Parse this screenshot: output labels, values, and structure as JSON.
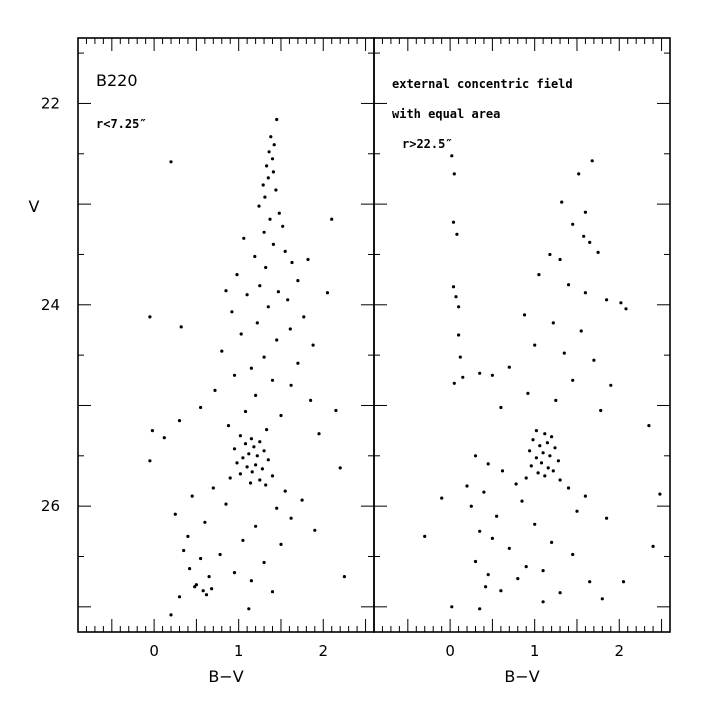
{
  "chart_data": [
    {
      "type": "scatter",
      "xlabel": "B−V",
      "ylabel": "V",
      "xlim": [
        -0.9,
        2.6
      ],
      "ylim": [
        27.25,
        21.35
      ],
      "xticks": [
        0,
        1,
        2
      ],
      "yticks": [
        22,
        24,
        26
      ],
      "y_inverted": true,
      "grid": false,
      "annotations": [
        "B220",
        "r<7.25″"
      ],
      "series": [
        {
          "points": [
            [
              1.45,
              22.16
            ],
            [
              1.38,
              22.33
            ],
            [
              1.42,
              22.41
            ],
            [
              1.36,
              22.48
            ],
            [
              1.4,
              22.55
            ],
            [
              1.33,
              22.62
            ],
            [
              1.41,
              22.68
            ],
            [
              1.35,
              22.74
            ],
            [
              1.29,
              22.81
            ],
            [
              1.44,
              22.86
            ],
            [
              1.31,
              22.93
            ],
            [
              0.2,
              22.58
            ],
            [
              1.24,
              23.02
            ],
            [
              1.48,
              23.09
            ],
            [
              1.37,
              23.15
            ],
            [
              1.52,
              23.22
            ],
            [
              1.3,
              23.28
            ],
            [
              1.06,
              23.34
            ],
            [
              1.41,
              23.4
            ],
            [
              1.55,
              23.47
            ],
            [
              1.19,
              23.52
            ],
            [
              1.63,
              23.58
            ],
            [
              1.32,
              23.63
            ],
            [
              0.98,
              23.7
            ],
            [
              1.7,
              23.76
            ],
            [
              1.25,
              23.81
            ],
            [
              1.47,
              23.87
            ],
            [
              2.1,
              23.15
            ],
            [
              1.82,
              23.55
            ],
            [
              0.85,
              23.86
            ],
            [
              1.1,
              23.9
            ],
            [
              1.58,
              23.95
            ],
            [
              1.35,
              24.02
            ],
            [
              0.92,
              24.07
            ],
            [
              1.77,
              24.12
            ],
            [
              1.22,
              24.18
            ],
            [
              1.61,
              24.24
            ],
            [
              1.03,
              24.29
            ],
            [
              1.45,
              24.35
            ],
            [
              1.88,
              24.4
            ],
            [
              0.8,
              24.46
            ],
            [
              1.3,
              24.52
            ],
            [
              1.7,
              24.58
            ],
            [
              1.15,
              24.63
            ],
            [
              -0.05,
              24.12
            ],
            [
              0.32,
              24.22
            ],
            [
              2.05,
              23.88
            ],
            [
              0.95,
              24.7
            ],
            [
              1.4,
              24.75
            ],
            [
              1.62,
              24.8
            ],
            [
              0.72,
              24.85
            ],
            [
              1.2,
              24.9
            ],
            [
              1.85,
              24.95
            ],
            [
              0.55,
              25.02
            ],
            [
              1.08,
              25.06
            ],
            [
              1.5,
              25.1
            ],
            [
              0.3,
              25.15
            ],
            [
              0.88,
              25.2
            ],
            [
              1.33,
              25.24
            ],
            [
              1.95,
              25.28
            ],
            [
              0.12,
              25.32
            ],
            [
              2.15,
              25.05
            ],
            [
              -0.02,
              25.25
            ],
            [
              1.02,
              25.3
            ],
            [
              1.15,
              25.33
            ],
            [
              1.25,
              25.36
            ],
            [
              1.08,
              25.38
            ],
            [
              1.18,
              25.41
            ],
            [
              0.95,
              25.43
            ],
            [
              1.3,
              25.45
            ],
            [
              1.12,
              25.48
            ],
            [
              1.22,
              25.5
            ],
            [
              1.05,
              25.52
            ],
            [
              1.35,
              25.54
            ],
            [
              0.98,
              25.57
            ],
            [
              1.2,
              25.59
            ],
            [
              1.1,
              25.61
            ],
            [
              1.28,
              25.63
            ],
            [
              1.16,
              25.66
            ],
            [
              1.02,
              25.68
            ],
            [
              1.4,
              25.7
            ],
            [
              0.9,
              25.72
            ],
            [
              1.25,
              25.74
            ],
            [
              1.14,
              25.77
            ],
            [
              1.32,
              25.79
            ],
            [
              0.7,
              25.82
            ],
            [
              1.55,
              25.85
            ],
            [
              0.45,
              25.9
            ],
            [
              1.75,
              25.94
            ],
            [
              0.85,
              25.98
            ],
            [
              1.45,
              26.02
            ],
            [
              0.25,
              26.08
            ],
            [
              1.62,
              26.12
            ],
            [
              0.6,
              26.16
            ],
            [
              1.2,
              26.2
            ],
            [
              1.9,
              26.24
            ],
            [
              0.4,
              26.3
            ],
            [
              1.05,
              26.34
            ],
            [
              1.5,
              26.38
            ],
            [
              0.35,
              26.44
            ],
            [
              0.78,
              26.48
            ],
            [
              2.2,
              25.62
            ],
            [
              2.25,
              26.7
            ],
            [
              -0.05,
              25.55
            ],
            [
              0.55,
              26.52
            ],
            [
              1.3,
              26.56
            ],
            [
              0.42,
              26.62
            ],
            [
              0.95,
              26.66
            ],
            [
              0.65,
              26.7
            ],
            [
              1.15,
              26.74
            ],
            [
              0.5,
              26.78
            ],
            [
              0.58,
              26.84
            ],
            [
              0.62,
              26.88
            ],
            [
              0.48,
              26.8
            ],
            [
              0.68,
              26.82
            ],
            [
              0.2,
              27.08
            ],
            [
              1.12,
              27.02
            ],
            [
              0.3,
              26.9
            ],
            [
              1.4,
              26.85
            ]
          ]
        }
      ]
    },
    {
      "type": "scatter",
      "xlabel": "B−V",
      "ylabel": "",
      "xlim": [
        -0.9,
        2.6
      ],
      "ylim": [
        27.25,
        21.35
      ],
      "xticks": [
        0,
        1,
        2
      ],
      "yticks": [
        22,
        24,
        26
      ],
      "y_inverted": true,
      "grid": false,
      "annotations": [
        "external concentric field",
        "with equal area",
        "r>22.5″"
      ],
      "series": [
        {
          "points": [
            [
              0.02,
              22.52
            ],
            [
              0.05,
              22.7
            ],
            [
              1.68,
              22.57
            ],
            [
              1.52,
              22.7
            ],
            [
              0.04,
              23.18
            ],
            [
              1.32,
              22.98
            ],
            [
              1.6,
              23.08
            ],
            [
              0.08,
              23.3
            ],
            [
              1.45,
              23.2
            ],
            [
              1.58,
              23.32
            ],
            [
              1.65,
              23.38
            ],
            [
              1.18,
              23.5
            ],
            [
              1.3,
              23.55
            ],
            [
              1.75,
              23.48
            ],
            [
              0.04,
              23.82
            ],
            [
              0.07,
              23.92
            ],
            [
              0.1,
              24.02
            ],
            [
              1.05,
              23.7
            ],
            [
              1.4,
              23.8
            ],
            [
              1.6,
              23.88
            ],
            [
              1.85,
              23.95
            ],
            [
              2.02,
              23.98
            ],
            [
              2.08,
              24.04
            ],
            [
              0.88,
              24.1
            ],
            [
              1.22,
              24.18
            ],
            [
              1.55,
              24.26
            ],
            [
              0.1,
              24.3
            ],
            [
              0.12,
              24.52
            ],
            [
              0.15,
              24.72
            ],
            [
              1.0,
              24.4
            ],
            [
              1.35,
              24.48
            ],
            [
              1.7,
              24.55
            ],
            [
              0.7,
              24.62
            ],
            [
              0.35,
              24.68
            ],
            [
              0.5,
              24.7
            ],
            [
              1.45,
              24.75
            ],
            [
              1.9,
              24.8
            ],
            [
              0.92,
              24.88
            ],
            [
              1.25,
              24.95
            ],
            [
              0.05,
              24.78
            ],
            [
              0.6,
              25.02
            ],
            [
              1.78,
              25.05
            ],
            [
              2.35,
              25.2
            ],
            [
              1.02,
              25.25
            ],
            [
              1.12,
              25.28
            ],
            [
              1.2,
              25.31
            ],
            [
              0.98,
              25.34
            ],
            [
              1.15,
              25.37
            ],
            [
              1.06,
              25.4
            ],
            [
              1.24,
              25.42
            ],
            [
              0.94,
              25.45
            ],
            [
              1.1,
              25.47
            ],
            [
              1.18,
              25.5
            ],
            [
              1.02,
              25.52
            ],
            [
              1.28,
              25.55
            ],
            [
              1.08,
              25.57
            ],
            [
              0.96,
              25.6
            ],
            [
              1.16,
              25.62
            ],
            [
              1.22,
              25.65
            ],
            [
              1.04,
              25.67
            ],
            [
              1.12,
              25.7
            ],
            [
              0.9,
              25.72
            ],
            [
              1.3,
              25.74
            ],
            [
              0.3,
              25.5
            ],
            [
              0.45,
              25.58
            ],
            [
              0.62,
              25.65
            ],
            [
              0.2,
              25.8
            ],
            [
              0.4,
              25.86
            ],
            [
              0.78,
              25.78
            ],
            [
              1.4,
              25.82
            ],
            [
              1.6,
              25.9
            ],
            [
              0.85,
              25.95
            ],
            [
              0.25,
              26.0
            ],
            [
              1.5,
              26.05
            ],
            [
              0.55,
              26.1
            ],
            [
              1.85,
              26.12
            ],
            [
              1.0,
              26.18
            ],
            [
              0.35,
              26.25
            ],
            [
              -0.1,
              25.92
            ],
            [
              -0.3,
              26.3
            ],
            [
              2.48,
              25.88
            ],
            [
              2.4,
              26.4
            ],
            [
              0.5,
              26.32
            ],
            [
              1.2,
              26.36
            ],
            [
              0.7,
              26.42
            ],
            [
              1.45,
              26.48
            ],
            [
              0.3,
              26.55
            ],
            [
              0.9,
              26.6
            ],
            [
              1.1,
              26.64
            ],
            [
              0.45,
              26.68
            ],
            [
              0.8,
              26.72
            ],
            [
              1.65,
              26.75
            ],
            [
              0.42,
              26.8
            ],
            [
              0.6,
              26.84
            ],
            [
              1.3,
              26.86
            ],
            [
              2.05,
              26.75
            ],
            [
              1.8,
              26.92
            ],
            [
              0.02,
              27.0
            ],
            [
              0.35,
              27.02
            ],
            [
              1.1,
              26.95
            ]
          ]
        }
      ]
    }
  ]
}
